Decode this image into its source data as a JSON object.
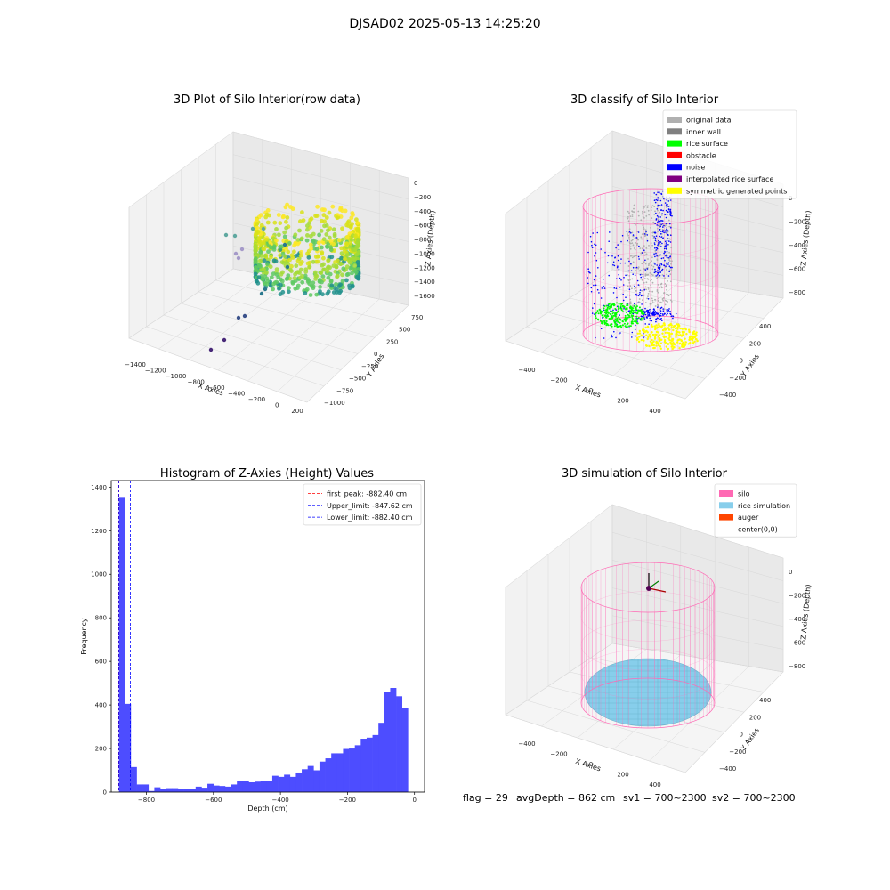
{
  "suptitle": "DJSAD02 2025-05-13 14:25:20",
  "footer": {
    "flag": "flag = 29",
    "avg_depth": "avgDepth = 862 cm",
    "sv1": "sv1 = 700~2300",
    "sv2": "sv2 = 700~2300"
  },
  "colors": {
    "gray_point": "#b0b0b0",
    "inner_wall": "#808080",
    "rice_surface": "#00ff00",
    "obstacle": "#ff0000",
    "noise": "#0000ff",
    "interpolated": "#800080",
    "symmetric": "#ffff00",
    "silo": "#ff69b4",
    "rice_sim": "#87ceeb",
    "auger": "#ff4500",
    "hist_bar": "#4d4dff"
  },
  "chart_data": [
    {
      "type": "scatter3d",
      "title": "3D Plot of Silo Interior(row data)",
      "xlabel": "X Axies",
      "ylabel": "Y Axies",
      "zlabel": "Z Axies (Depth)",
      "x_ticks": [
        "−1400",
        "−1200",
        "−1000",
        "−800",
        "−600",
        "−400",
        "−200",
        "0",
        "200"
      ],
      "y_ticks": [
        "750",
        "500",
        "250",
        "0",
        "−250",
        "−500",
        "−750",
        "−1000"
      ],
      "z_ticks": [
        "0",
        "−200",
        "−400",
        "−600",
        "−800",
        "−1000",
        "−1200",
        "−1400",
        "−1600"
      ],
      "colormap": "viridis"
    },
    {
      "type": "scatter3d",
      "title": "3D classify of Silo Interior",
      "xlabel": "X Axies",
      "ylabel": "Y Axies",
      "zlabel": "Z Axies (Depth)",
      "x_ticks": [
        "−400",
        "−200",
        "0",
        "200",
        "400"
      ],
      "y_ticks": [
        "400",
        "200",
        "0",
        "−200",
        "−400"
      ],
      "z_ticks": [
        "0",
        "−200",
        "−400",
        "−600",
        "−800"
      ],
      "legend": [
        "original data",
        "inner wall",
        "rice surface",
        "obstacle",
        "noise",
        "interpolated rice surface",
        "symmetric generated points"
      ],
      "legend_position": "top-right"
    },
    {
      "type": "bar",
      "title": "Histogram of Z-Axies (Height) Values",
      "xlabel": "Depth (cm)",
      "ylabel": "Frequency",
      "xlim": [
        -905,
        30
      ],
      "ylim": [
        0,
        1430
      ],
      "x_ticks": [
        -800,
        -600,
        -400,
        -200,
        0
      ],
      "x_tick_labels": [
        "−800",
        "−600",
        "−400",
        "−200",
        "0"
      ],
      "y_ticks": [
        0,
        200,
        400,
        600,
        800,
        1000,
        1200,
        1400
      ],
      "y_tick_labels": [
        "0",
        "200",
        "400",
        "600",
        "800",
        "1000",
        "1200",
        "1400"
      ],
      "bin_start": -882,
      "bin_width": 17.6,
      "values": [
        1355,
        405,
        115,
        35,
        35,
        5,
        22,
        15,
        18,
        18,
        15,
        15,
        15,
        25,
        20,
        38,
        30,
        28,
        25,
        35,
        50,
        50,
        45,
        48,
        52,
        50,
        75,
        70,
        80,
        70,
        90,
        105,
        120,
        100,
        140,
        155,
        178,
        178,
        198,
        200,
        215,
        245,
        250,
        262,
        318,
        460,
        478,
        440,
        385
      ],
      "vlines": [
        {
          "label": "first_peak: -882.40 cm",
          "x": -882.4,
          "color": "#ff0000"
        },
        {
          "label": "Upper_limit: -847.62 cm",
          "x": -847.62,
          "color": "#0000ff"
        },
        {
          "label": "Lower_limit: -882.40 cm",
          "x": -882.4,
          "color": "#0000ff"
        }
      ],
      "legend_position": "top-right"
    },
    {
      "type": "surface3d",
      "title": "3D simulation of Silo Interior",
      "xlabel": "X Axies",
      "ylabel": "Y Axies",
      "zlabel": "Z Axies (Depth)",
      "x_ticks": [
        "−400",
        "−200",
        "0",
        "200",
        "400"
      ],
      "y_ticks": [
        "400",
        "200",
        "0",
        "−200",
        "−400"
      ],
      "z_ticks": [
        "0",
        "−200",
        "−400",
        "−600",
        "−800"
      ],
      "legend": [
        "silo",
        "rice simulation",
        "auger",
        "center(0,0)"
      ],
      "legend_position": "top-right"
    }
  ]
}
